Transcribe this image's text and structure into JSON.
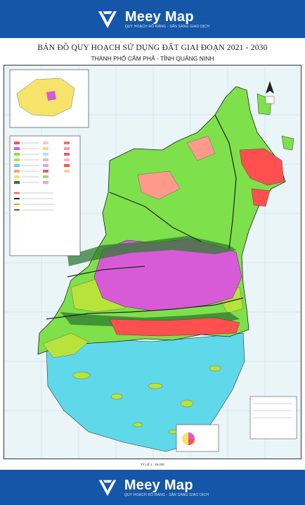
{
  "brand": {
    "name": "Meey Map",
    "tagline": "QUY HOẠCH RÕ RÀNG - SẴN SÀNG GIAO DỊCH",
    "color": "#1556a8"
  },
  "map": {
    "title": "BẢN ĐỒ QUY HOẠCH SỬ DỤNG ĐẤT GIAI ĐOẠN 2021 - 2030",
    "subtitle": "THÀNH PHỐ CẨM PHẢ - TỈNH QUẢNG NINH",
    "scale": "TỶ LỆ 1 : 25.000",
    "colors": {
      "sea": "#5fd8ea",
      "forest": "#7ee04a",
      "urban": "#d75bd6",
      "residential": "#ff4f4f",
      "production_forest": "#b7e33b",
      "mining": "#ff9a8a",
      "road": "#222222"
    }
  }
}
